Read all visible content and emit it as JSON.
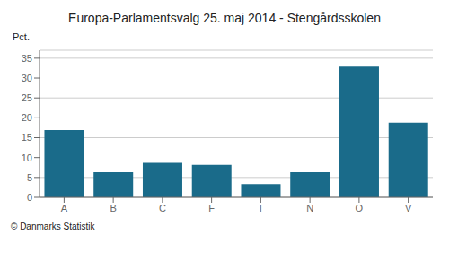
{
  "chart_data": {
    "type": "bar",
    "title": "Europa-Parlamentsvalg 25. maj 2014 - Stengårdsskolen",
    "ylabel": "Pct.",
    "categories": [
      "A",
      "B",
      "C",
      "F",
      "I",
      "N",
      "O",
      "V"
    ],
    "values": [
      16.9,
      6.3,
      8.7,
      8.2,
      3.3,
      6.3,
      32.9,
      18.8
    ],
    "color": "#1a6b8a",
    "ylim": [
      0,
      37
    ],
    "yticks": [
      0,
      5,
      10,
      15,
      20,
      25,
      30,
      35
    ],
    "grid": true,
    "annotations": [
      "© Danmarks Statistik"
    ]
  }
}
